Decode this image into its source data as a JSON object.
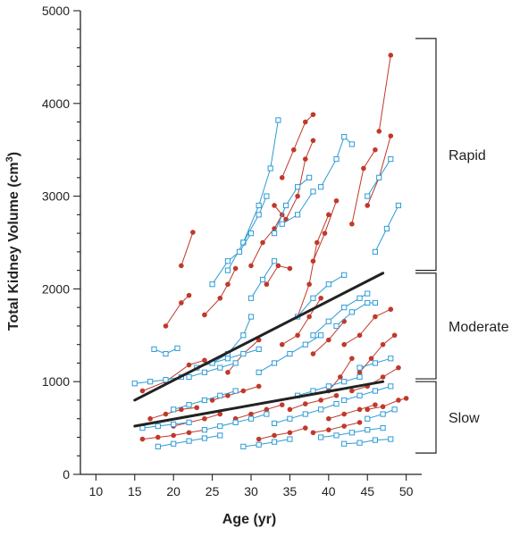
{
  "chart_data": {
    "type": "scatter",
    "xlabel": "Age (yr)",
    "ylabel_main": "Total Kidney Volume (cm",
    "ylabel_sup": "3",
    "ylabel_tail": ")",
    "xlim": [
      8,
      52
    ],
    "ylim": [
      0,
      5000
    ],
    "x_ticks": [
      10,
      15,
      20,
      25,
      30,
      35,
      40,
      45,
      50
    ],
    "y_ticks": [
      0,
      1000,
      2000,
      3000,
      4000,
      5000
    ],
    "y_minor_step": 200,
    "grid": false,
    "markers": {
      "red": "filled-circle",
      "blue": "open-square"
    },
    "colors": {
      "red": "#c0392b",
      "blue": "#2e9bd6",
      "trend": "#222222",
      "axis": "#222222"
    },
    "groups": [
      {
        "label": "Rapid",
        "range": [
          2200,
          4700
        ]
      },
      {
        "label": "Moderate",
        "range": [
          1030,
          2170
        ]
      },
      {
        "label": "Slow",
        "range": [
          230,
          1000
        ]
      }
    ],
    "trend_lines": [
      {
        "x": [
          15,
          47
        ],
        "y": [
          800,
          2170
        ]
      },
      {
        "x": [
          15,
          47
        ],
        "y": [
          520,
          1000
        ]
      }
    ],
    "series": [
      {
        "color": "red",
        "x": [
          19,
          21,
          22
        ],
        "y": [
          1600,
          1850,
          1930
        ]
      },
      {
        "color": "red",
        "x": [
          21,
          22.5
        ],
        "y": [
          2250,
          2610
        ]
      },
      {
        "color": "red",
        "x": [
          16,
          19,
          22,
          24
        ],
        "y": [
          900,
          1000,
          1180,
          1230
        ]
      },
      {
        "color": "red",
        "x": [
          24,
          26,
          27,
          28
        ],
        "y": [
          1720,
          1900,
          2050,
          2220
        ]
      },
      {
        "color": "red",
        "x": [
          27,
          29,
          31
        ],
        "y": [
          1100,
          1300,
          1450
        ]
      },
      {
        "color": "red",
        "x": [
          30,
          31.5,
          33,
          34
        ],
        "y": [
          2250,
          2500,
          2650,
          2800
        ]
      },
      {
        "color": "red",
        "x": [
          32,
          33.5,
          35
        ],
        "y": [
          2050,
          2250,
          2220
        ]
      },
      {
        "color": "red",
        "x": [
          33,
          34.5,
          36,
          37,
          38
        ],
        "y": [
          2900,
          2750,
          3000,
          3400,
          3600
        ]
      },
      {
        "color": "red",
        "x": [
          34,
          35.5,
          37,
          38
        ],
        "y": [
          3200,
          3500,
          3800,
          3880
        ]
      },
      {
        "color": "red",
        "x": [
          36,
          37.5,
          38.5,
          40
        ],
        "y": [
          1700,
          2050,
          2500,
          2800
        ]
      },
      {
        "color": "red",
        "x": [
          38,
          39.5,
          41
        ],
        "y": [
          2300,
          2600,
          2950
        ]
      },
      {
        "color": "red",
        "x": [
          34,
          36,
          37.5,
          39
        ],
        "y": [
          1400,
          1500,
          1700,
          1900
        ]
      },
      {
        "color": "red",
        "x": [
          38,
          40,
          42
        ],
        "y": [
          1300,
          1450,
          1650
        ]
      },
      {
        "color": "red",
        "x": [
          40,
          41.5,
          43
        ],
        "y": [
          900,
          1050,
          1250
        ]
      },
      {
        "color": "red",
        "x": [
          43,
          44.5,
          46
        ],
        "y": [
          2700,
          3300,
          3500
        ]
      },
      {
        "color": "red",
        "x": [
          45,
          46.5,
          48
        ],
        "y": [
          2900,
          3200,
          3650
        ]
      },
      {
        "color": "red",
        "x": [
          46.5,
          48
        ],
        "y": [
          3700,
          4520
        ]
      },
      {
        "color": "red",
        "x": [
          42,
          44,
          46,
          48
        ],
        "y": [
          1400,
          1500,
          1700,
          1780
        ]
      },
      {
        "color": "red",
        "x": [
          44,
          45.5,
          47,
          48.5
        ],
        "y": [
          1100,
          1250,
          1400,
          1500
        ]
      },
      {
        "color": "red",
        "x": [
          43,
          45,
          47,
          49
        ],
        "y": [
          900,
          950,
          1050,
          1150
        ]
      },
      {
        "color": "red",
        "x": [
          45,
          47,
          49,
          50
        ],
        "y": [
          700,
          730,
          800,
          820
        ]
      },
      {
        "color": "red",
        "x": [
          16,
          18,
          20,
          22,
          24
        ],
        "y": [
          380,
          400,
          420,
          450,
          480
        ]
      },
      {
        "color": "red",
        "x": [
          17,
          19,
          21,
          23
        ],
        "y": [
          600,
          650,
          700,
          720
        ]
      },
      {
        "color": "red",
        "x": [
          20,
          22,
          24,
          26
        ],
        "y": [
          520,
          560,
          600,
          650
        ]
      },
      {
        "color": "red",
        "x": [
          25,
          27,
          29,
          31
        ],
        "y": [
          800,
          850,
          900,
          950
        ]
      },
      {
        "color": "red",
        "x": [
          28,
          30,
          32,
          34
        ],
        "y": [
          600,
          650,
          700,
          750
        ]
      },
      {
        "color": "red",
        "x": [
          31,
          33,
          35,
          37
        ],
        "y": [
          380,
          420,
          450,
          500
        ]
      },
      {
        "color": "red",
        "x": [
          35,
          37,
          39,
          41
        ],
        "y": [
          700,
          760,
          800,
          850
        ]
      },
      {
        "color": "red",
        "x": [
          38,
          40,
          42,
          44
        ],
        "y": [
          450,
          480,
          520,
          560
        ]
      },
      {
        "color": "red",
        "x": [
          40,
          42,
          44,
          46
        ],
        "y": [
          600,
          650,
          700,
          750
        ]
      },
      {
        "color": "blue",
        "x": [
          17.5,
          19,
          20.5
        ],
        "y": [
          1350,
          1300,
          1360
        ]
      },
      {
        "color": "blue",
        "x": [
          15,
          17,
          19,
          21
        ],
        "y": [
          980,
          1000,
          1020,
          1050
        ]
      },
      {
        "color": "blue",
        "x": [
          25,
          27,
          29,
          30
        ],
        "y": [
          1200,
          1300,
          1500,
          1700
        ]
      },
      {
        "color": "blue",
        "x": [
          27,
          29,
          31,
          32
        ],
        "y": [
          2200,
          2500,
          2800,
          3000
        ]
      },
      {
        "color": "blue",
        "x": [
          29,
          31,
          32.5,
          33.5
        ],
        "y": [
          2500,
          2900,
          3300,
          3820
        ]
      },
      {
        "color": "blue",
        "x": [
          25,
          27,
          28.5,
          30
        ],
        "y": [
          2050,
          2300,
          2400,
          2600
        ]
      },
      {
        "color": "blue",
        "x": [
          30,
          31.5,
          33
        ],
        "y": [
          1900,
          2100,
          2300
        ]
      },
      {
        "color": "blue",
        "x": [
          33,
          34.5,
          36,
          37.5
        ],
        "y": [
          2600,
          2900,
          3100,
          3200
        ]
      },
      {
        "color": "blue",
        "x": [
          34,
          36,
          38
        ],
        "y": [
          2700,
          2800,
          3050
        ]
      },
      {
        "color": "blue",
        "x": [
          39,
          41,
          42,
          43
        ],
        "y": [
          3100,
          3400,
          3640,
          3560
        ]
      },
      {
        "color": "blue",
        "x": [
          45,
          46.5,
          48
        ],
        "y": [
          3000,
          3200,
          3400
        ]
      },
      {
        "color": "blue",
        "x": [
          46,
          47.5,
          49
        ],
        "y": [
          2400,
          2650,
          2900
        ]
      },
      {
        "color": "blue",
        "x": [
          36,
          38,
          40,
          42
        ],
        "y": [
          1700,
          1900,
          2050,
          2150
        ]
      },
      {
        "color": "blue",
        "x": [
          38,
          40,
          42,
          44,
          45
        ],
        "y": [
          1500,
          1650,
          1800,
          1900,
          1950
        ]
      },
      {
        "color": "blue",
        "x": [
          41,
          43,
          45,
          46
        ],
        "y": [
          1600,
          1750,
          1850,
          1850
        ]
      },
      {
        "color": "blue",
        "x": [
          22,
          24,
          26,
          28
        ],
        "y": [
          1050,
          1100,
          1150,
          1200
        ]
      },
      {
        "color": "blue",
        "x": [
          20,
          22,
          24,
          26,
          28
        ],
        "y": [
          700,
          750,
          800,
          850,
          900
        ]
      },
      {
        "color": "blue",
        "x": [
          23,
          25,
          27,
          29,
          31
        ],
        "y": [
          1150,
          1200,
          1250,
          1300,
          1350
        ]
      },
      {
        "color": "blue",
        "x": [
          31,
          33,
          35,
          37,
          39
        ],
        "y": [
          1100,
          1200,
          1300,
          1400,
          1500
        ]
      },
      {
        "color": "blue",
        "x": [
          16,
          18,
          20,
          22
        ],
        "y": [
          500,
          520,
          540,
          560
        ]
      },
      {
        "color": "blue",
        "x": [
          18,
          20,
          22,
          24,
          26
        ],
        "y": [
          300,
          330,
          360,
          390,
          420
        ]
      },
      {
        "color": "blue",
        "x": [
          24,
          26,
          28,
          30,
          32
        ],
        "y": [
          480,
          520,
          560,
          600,
          650
        ]
      },
      {
        "color": "blue",
        "x": [
          29,
          31,
          33,
          35
        ],
        "y": [
          300,
          320,
          350,
          380
        ]
      },
      {
        "color": "blue",
        "x": [
          33,
          35,
          37,
          39,
          41
        ],
        "y": [
          550,
          600,
          650,
          700,
          760
        ]
      },
      {
        "color": "blue",
        "x": [
          36,
          38,
          40,
          42,
          44
        ],
        "y": [
          850,
          900,
          950,
          1000,
          1050
        ]
      },
      {
        "color": "blue",
        "x": [
          39,
          41,
          43,
          45,
          47
        ],
        "y": [
          400,
          420,
          450,
          480,
          500
        ]
      },
      {
        "color": "blue",
        "x": [
          42,
          44,
          46,
          48
        ],
        "y": [
          330,
          340,
          370,
          380
        ]
      },
      {
        "color": "blue",
        "x": [
          44,
          46,
          48
        ],
        "y": [
          1150,
          1200,
          1250
        ]
      },
      {
        "color": "blue",
        "x": [
          42,
          44,
          46,
          48
        ],
        "y": [
          800,
          850,
          900,
          950
        ]
      },
      {
        "color": "blue",
        "x": [
          45,
          47,
          48.5
        ],
        "y": [
          600,
          650,
          700
        ]
      }
    ]
  }
}
